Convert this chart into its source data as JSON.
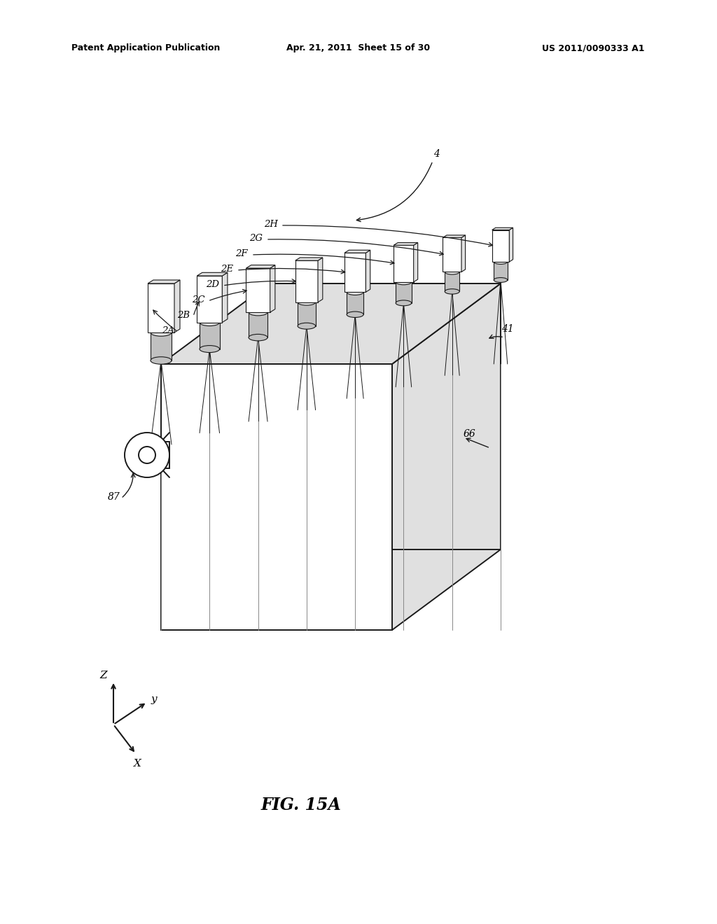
{
  "background_color": "#ffffff",
  "header_left": "Patent Application Publication",
  "header_mid": "Apr. 21, 2011  Sheet 15 of 30",
  "header_right": "US 2011/0090333 A1",
  "figure_label": "FIG. 15A",
  "line_color": "#1a1a1a",
  "gray_light": "#e0e0e0",
  "gray_mid": "#c0c0c0",
  "gray_dark": "#a0a0a0"
}
